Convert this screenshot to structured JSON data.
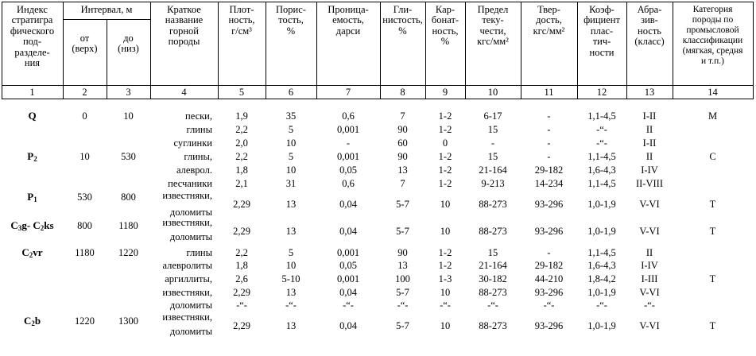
{
  "table": {
    "headers": {
      "c1": "Индекс\nстратигра\nфического\nпод-\nразделе-\nния",
      "interval": "Интервал, м",
      "c2": "от\n(верх)",
      "c3": "до\n(низ)",
      "c4": "Краткое\nназвание\nгорной\nпороды",
      "c5": "Плот-\nность,\nг/см³",
      "c6": "Порис-\nтость,\n%",
      "c7": "Проница-\nемость,\nдарси",
      "c8": "Гли-\nнистость,\n%",
      "c9": "Кар-\nбонат-\nность,\n%",
      "c10": "Предел\nтеку-\nчести,\nкгс/мм²",
      "c11": "Твер-\nдость,\nкгс/мм²",
      "c12": "Коэф-\nфициент\nплас-\nтич-\nности",
      "c13": "Абра-\nзив-\nность\n(класс)",
      "c14": "Категория\nпороды по\nпромысловой\nклассификации\n(мягкая, средня\nи т.п.)"
    },
    "col_numbers": [
      "1",
      "2",
      "3",
      "4",
      "5",
      "6",
      "7",
      "8",
      "9",
      "10",
      "11",
      "12",
      "13",
      "14"
    ],
    "groups": [
      {
        "index": "Q",
        "from": "0",
        "to": "10",
        "category": "М"
      },
      {
        "index": "P₂",
        "from": "10",
        "to": "530",
        "category": "С"
      },
      {
        "index": "P₁",
        "from": "530",
        "to": "800",
        "category": "Т"
      },
      {
        "index": "C₃g- C₂ks",
        "from": "800",
        "to": "1180",
        "category": "Т"
      },
      {
        "index": "C₂vr",
        "from": "1180",
        "to": "1220",
        "category": "Т"
      },
      {
        "index": "C₂b",
        "from": "1220",
        "to": "1300",
        "category": "Т"
      }
    ],
    "rows": [
      {
        "rock": "пески,",
        "dens": "1,9",
        "por": "35",
        "perm": "0,6",
        "clay": "7",
        "carb": "1-2",
        "yield": "6-17",
        "hard": "-",
        "plast": "1,1-4,5",
        "abr": "I-II"
      },
      {
        "rock": "глины",
        "dens": "2,2",
        "por": "5",
        "perm": "0,001",
        "clay": "90",
        "carb": "1-2",
        "yield": "15",
        "hard": "-",
        "plast": "-“-",
        "abr": "II"
      },
      {
        "rock": "суглинки",
        "dens": "2,0",
        "por": "10",
        "perm": "-",
        "clay": "60",
        "carb": "0",
        "yield": "-",
        "hard": "-",
        "plast": "-“-",
        "abr": "I-II"
      },
      {
        "rock": "глины,",
        "dens": "2,2",
        "por": "5",
        "perm": "0,001",
        "clay": "90",
        "carb": "1-2",
        "yield": "15",
        "hard": "-",
        "plast": "1,1-4,5",
        "abr": "II"
      },
      {
        "rock": "алеврол.",
        "dens": "1,8",
        "por": "10",
        "perm": "0,05",
        "clay": "13",
        "carb": "1-2",
        "yield": "21-164",
        "hard": "29-182",
        "plast": "1,6-4,3",
        "abr": "I-IV"
      },
      {
        "rock": "песчаники",
        "dens": "2,1",
        "por": "31",
        "perm": "0,6",
        "clay": "7",
        "carb": "1-2",
        "yield": "9-213",
        "hard": "14-234",
        "plast": "1,1-4,5",
        "abr": "II-VIII"
      },
      {
        "rock": "известняки,",
        "rock2": "доломиты",
        "dens": "2,29",
        "por": "13",
        "perm": "0,04",
        "clay": "5-7",
        "carb": "10",
        "yield": "88-273",
        "hard": "93-296",
        "plast": "1,0-1,9",
        "abr": "V-VI"
      },
      {
        "rock": "известняки,",
        "rock2": "доломиты",
        "dens": "2,29",
        "por": "13",
        "perm": "0,04",
        "clay": "5-7",
        "carb": "10",
        "yield": "88-273",
        "hard": "93-296",
        "plast": "1,0-1,9",
        "abr": "V-VI"
      },
      {
        "rock": "глины",
        "dens": "2,2",
        "por": "5",
        "perm": "0,001",
        "clay": "90",
        "carb": "1-2",
        "yield": "15",
        "hard": "-",
        "plast": "1,1-4,5",
        "abr": "II"
      },
      {
        "rock": "алевролиты",
        "dens": "1,8",
        "por": "10",
        "perm": "0,05",
        "clay": "13",
        "carb": "1-2",
        "yield": "21-164",
        "hard": "29-182",
        "plast": "1,6-4,3",
        "abr": "I-IV"
      },
      {
        "rock": "аргиллиты,",
        "dens": "2,6",
        "por": "5-10",
        "perm": "0,001",
        "clay": "100",
        "carb": "1-3",
        "yield": "30-182",
        "hard": "44-210",
        "plast": "1,8-4,2",
        "abr": "I-III"
      },
      {
        "rock": "известняки,",
        "dens": "2,29",
        "por": "13",
        "perm": "0,04",
        "clay": "5-7",
        "carb": "10",
        "yield": "88-273",
        "hard": "93-296",
        "plast": "1,0-1,9",
        "abr": "V-VI"
      },
      {
        "rock": "доломиты",
        "dens": "-“-",
        "por": "-“-",
        "perm": "-“-",
        "clay": "-“-",
        "carb": "-“-",
        "yield": "-“-",
        "hard": "-“-",
        "plast": "-“-",
        "abr": "-“-"
      },
      {
        "rock": "известняки,",
        "rock2": "доломиты",
        "dens": "2,29",
        "por": "13",
        "perm": "0,04",
        "clay": "5-7",
        "carb": "10",
        "yield": "88-273",
        "hard": "93-296",
        "plast": "1,0-1,9",
        "abr": "V-VI"
      }
    ]
  }
}
